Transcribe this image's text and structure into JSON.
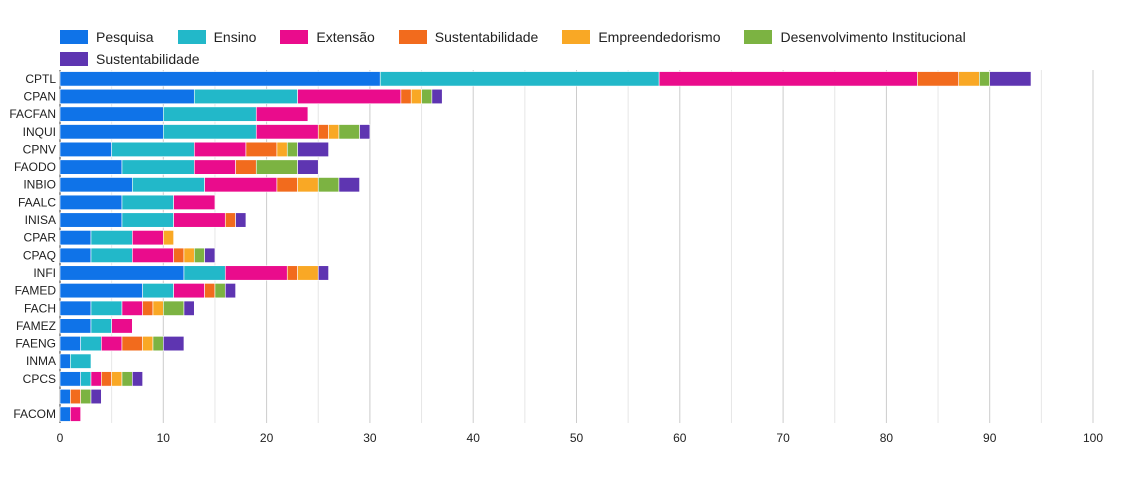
{
  "chart_data": {
    "type": "bar",
    "orientation": "horizontal",
    "stacked": true,
    "grid": true,
    "legend_position": "top",
    "xlim": [
      0,
      100
    ],
    "x_ticks": [
      "0",
      "10",
      "20",
      "30",
      "40",
      "50",
      "60",
      "70",
      "80",
      "90",
      "100"
    ],
    "categories": [
      "CPTL",
      "CPAN",
      "FACFAN",
      "INQUI",
      "CPNV",
      "FAODO",
      "INBIO",
      "FAALC",
      "INISA",
      "CPAR",
      "CPAQ",
      "INFI",
      "FAMED",
      "FACH",
      "FAMEZ",
      "FAENG",
      "INMA",
      "CPCS",
      "",
      "FACOM"
    ],
    "series": [
      {
        "name": "Pesquisa",
        "color": "#0f73e8",
        "values": [
          31,
          13,
          10,
          10,
          5,
          6,
          7,
          6,
          6,
          3,
          3,
          12,
          8,
          3,
          3,
          2,
          1,
          2,
          1,
          1
        ]
      },
      {
        "name": "Ensino",
        "color": "#22b8c9",
        "values": [
          27,
          10,
          9,
          9,
          8,
          7,
          7,
          5,
          5,
          4,
          4,
          4,
          3,
          3,
          2,
          2,
          2,
          1,
          0,
          0
        ]
      },
      {
        "name": "Extensão",
        "color": "#ea0c8c",
        "values": [
          25,
          10,
          5,
          6,
          5,
          4,
          7,
          4,
          5,
          3,
          4,
          6,
          3,
          2,
          2,
          2,
          0,
          1,
          0,
          1
        ]
      },
      {
        "name": "Sustentabilidade",
        "color": "#f26b1d",
        "values": [
          4,
          1,
          0,
          1,
          3,
          2,
          2,
          0,
          1,
          0,
          1,
          1,
          1,
          1,
          0,
          2,
          0,
          1,
          1,
          0
        ]
      },
      {
        "name": "Empreendedorismo",
        "color": "#f9a825",
        "values": [
          2,
          1,
          0,
          1,
          1,
          0,
          2,
          0,
          0,
          1,
          1,
          2,
          0,
          1,
          0,
          1,
          0,
          1,
          0,
          0
        ]
      },
      {
        "name": "Desenvolvimento Institucional",
        "color": "#7cb342",
        "values": [
          1,
          1,
          0,
          2,
          1,
          4,
          2,
          0,
          0,
          0,
          1,
          0,
          1,
          2,
          0,
          1,
          0,
          1,
          1,
          0
        ]
      },
      {
        "name": "Sustentabilidade",
        "color": "#5e35b1",
        "values": [
          4,
          1,
          0,
          1,
          3,
          2,
          2,
          0,
          1,
          0,
          1,
          1,
          1,
          1,
          0,
          2,
          0,
          1,
          1,
          0
        ]
      }
    ]
  }
}
